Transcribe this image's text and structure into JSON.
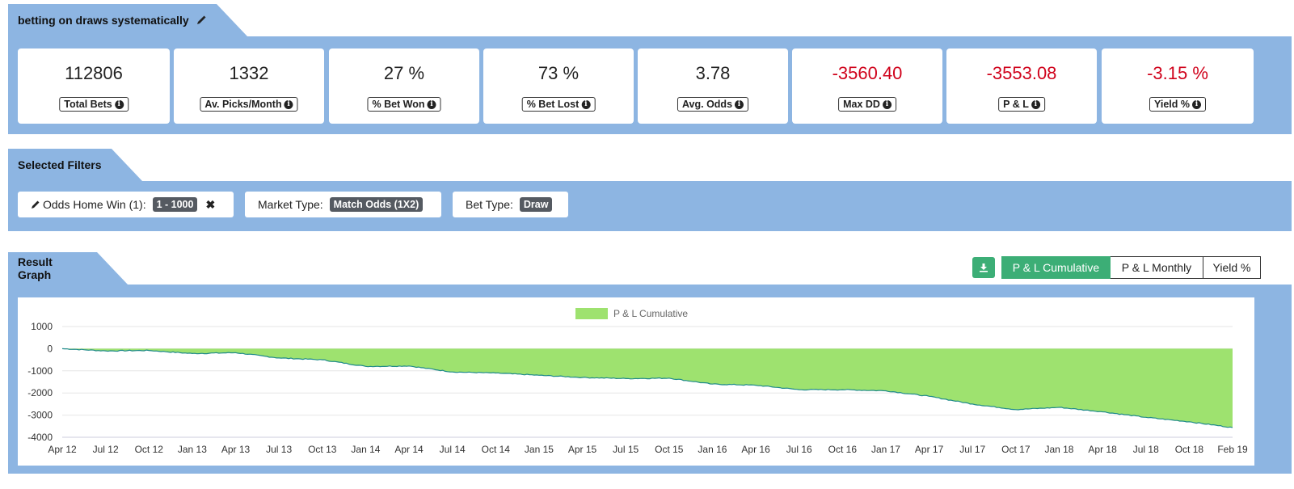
{
  "strategy": {
    "title": "betting on draws systematically",
    "edit_icon": "pencil-icon"
  },
  "stats": [
    {
      "value": "112806",
      "label": "Total Bets",
      "negative": false
    },
    {
      "value": "1332",
      "label": "Av. Picks/Month",
      "negative": false
    },
    {
      "value": "27 %",
      "label": "% Bet Won",
      "negative": false
    },
    {
      "value": "73 %",
      "label": "% Bet Lost",
      "negative": false
    },
    {
      "value": "3.78",
      "label": "Avg. Odds",
      "negative": false
    },
    {
      "value": "-3560.40",
      "label": "Max DD",
      "negative": true
    },
    {
      "value": "-3553.08",
      "label": "P & L",
      "negative": true
    },
    {
      "value": "-3.15 %",
      "label": "Yield %",
      "negative": true
    }
  ],
  "filters": {
    "title": "Selected Filters",
    "items": [
      {
        "label": "Odds Home Win (1):",
        "value": "1 - 1000",
        "editable": true,
        "removable": true
      },
      {
        "label": "Market Type:",
        "value": "Match Odds (1X2)",
        "editable": false,
        "removable": false
      },
      {
        "label": "Bet Type:",
        "value": "Draw",
        "editable": false,
        "removable": false
      }
    ]
  },
  "graph": {
    "title": "Result Graph",
    "download_icon": "download-icon",
    "tabs": [
      {
        "label": "P & L Cumulative",
        "active": true
      },
      {
        "label": "P & L Monthly",
        "active": false
      },
      {
        "label": "Yield %",
        "active": false
      }
    ]
  },
  "colors": {
    "section_bg": "#8db5e2",
    "accent_green": "#3cae76",
    "area_fill": "#9ee26f",
    "line": "#1f8a8a",
    "negative": "#d0021b"
  },
  "chart_data": {
    "type": "area",
    "legend": "P & L Cumulative",
    "legend_position": "top-center",
    "grid": true,
    "ylim": [
      -4000,
      1000
    ],
    "yticks": [
      1000,
      0,
      -1000,
      -2000,
      -3000,
      -4000
    ],
    "xticks": [
      "Apr 12",
      "Jul 12",
      "Oct 12",
      "Jan 13",
      "Apr 13",
      "Jul 13",
      "Oct 13",
      "Jan 14",
      "Apr 14",
      "Jul 14",
      "Oct 14",
      "Jan 15",
      "Apr 15",
      "Jul 15",
      "Oct 15",
      "Jan 16",
      "Apr 16",
      "Jul 16",
      "Oct 16",
      "Jan 17",
      "Apr 17",
      "Jul 17",
      "Oct 17",
      "Jan 18",
      "Apr 18",
      "Jul 18",
      "Oct 18",
      "Feb 19"
    ],
    "series": [
      {
        "name": "P & L Cumulative",
        "x": [
          "Apr 12",
          "Jul 12",
          "Oct 12",
          "Jan 13",
          "Apr 13",
          "Jul 13",
          "Oct 13",
          "Jan 14",
          "Apr 14",
          "Jul 14",
          "Oct 14",
          "Jan 15",
          "Apr 15",
          "Jul 15",
          "Oct 15",
          "Jan 16",
          "Apr 16",
          "Jul 16",
          "Oct 16",
          "Jan 17",
          "Apr 17",
          "Jul 17",
          "Oct 17",
          "Jan 18",
          "Apr 18",
          "Jul 18",
          "Oct 18",
          "Feb 19"
        ],
        "values": [
          0,
          -100,
          -80,
          -220,
          -180,
          -420,
          -500,
          -800,
          -780,
          -1050,
          -1100,
          -1200,
          -1300,
          -1350,
          -1330,
          -1600,
          -1650,
          -1850,
          -1850,
          -1900,
          -2150,
          -2500,
          -2750,
          -2650,
          -2850,
          -3100,
          -3300,
          -3560
        ]
      }
    ]
  }
}
